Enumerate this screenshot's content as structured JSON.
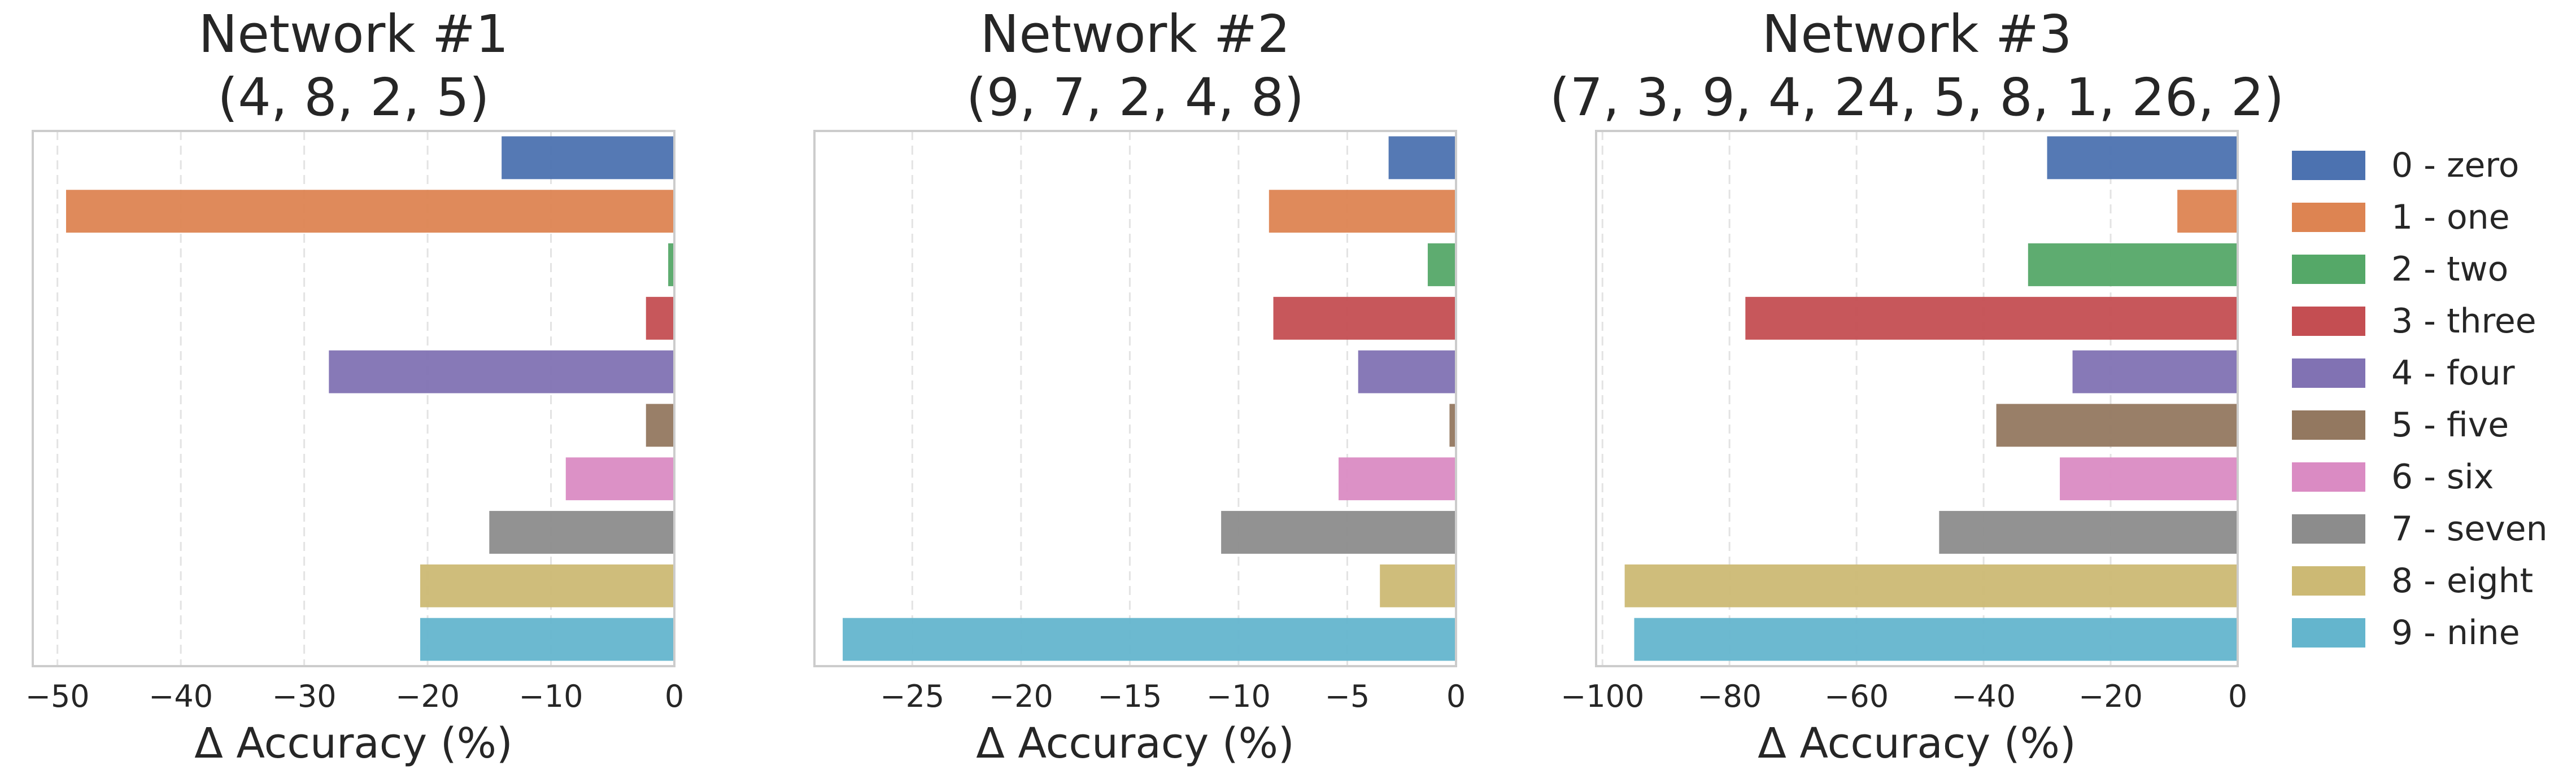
{
  "chart_data": [
    {
      "type": "bar",
      "orientation": "horizontal",
      "title": "Network #1",
      "subtitle": "(4, 8, 2, 5)",
      "xlabel": "Δ Accuracy (%)",
      "xlim": [
        -52,
        0
      ],
      "xticks": [
        -50,
        -40,
        -30,
        -20,
        -10,
        0
      ],
      "xtick_labels": [
        "−50",
        "−40",
        "−30",
        "−20",
        "−10",
        "0"
      ],
      "grid": true,
      "categories": [
        "0 - zero",
        "1 - one",
        "2 - two",
        "3 - three",
        "4 - four",
        "5 - five",
        "6 - six",
        "7 - seven",
        "8 - eight",
        "9 - nine"
      ],
      "values": [
        -14.0,
        -49.3,
        -0.5,
        -2.3,
        -28.0,
        -2.3,
        -8.8,
        -15.0,
        -20.6,
        -20.6
      ]
    },
    {
      "type": "bar",
      "orientation": "horizontal",
      "title": "Network #2",
      "subtitle": "(9, 7, 2, 4, 8)",
      "xlabel": "Δ Accuracy (%)",
      "xlim": [
        -29.5,
        0
      ],
      "xticks": [
        -25,
        -20,
        -15,
        -10,
        -5,
        0
      ],
      "xtick_labels": [
        "−25",
        "−20",
        "−15",
        "−10",
        "−5",
        "0"
      ],
      "grid": true,
      "categories": [
        "0 - zero",
        "1 - one",
        "2 - two",
        "3 - three",
        "4 - four",
        "5 - five",
        "6 - six",
        "7 - seven",
        "8 - eight",
        "9 - nine"
      ],
      "values": [
        -3.1,
        -8.6,
        -1.3,
        -8.4,
        -4.5,
        -0.3,
        -5.4,
        -10.8,
        -3.5,
        -28.2
      ]
    },
    {
      "type": "bar",
      "orientation": "horizontal",
      "title": "Network #3",
      "subtitle": "(7, 3, 9, 4, 24, 5, 8, 1, 26, 2)",
      "xlabel": "Δ Accuracy (%)",
      "xlim": [
        -101,
        0
      ],
      "xticks": [
        -100,
        -80,
        -60,
        -40,
        -20,
        0
      ],
      "xtick_labels": [
        "−100",
        "−80",
        "−60",
        "−40",
        "−20",
        "0"
      ],
      "grid": true,
      "categories": [
        "0 - zero",
        "1 - one",
        "2 - two",
        "3 - three",
        "4 - four",
        "5 - five",
        "6 - six",
        "7 - seven",
        "8 - eight",
        "9 - nine"
      ],
      "values": [
        -30.0,
        -9.5,
        -33.0,
        -77.5,
        -26.0,
        -38.0,
        -28.0,
        -47.0,
        -96.5,
        -95.0
      ]
    }
  ],
  "legend": {
    "placement": "right",
    "entries": [
      "0 - zero",
      "1 - one",
      "2 - two",
      "3 - three",
      "4 - four",
      "5 - five",
      "6 - six",
      "7 - seven",
      "8 - eight",
      "9 - nine"
    ]
  },
  "colors": [
    "#4c72b0",
    "#dd8452",
    "#55a868",
    "#c44e52",
    "#8172b3",
    "#937860",
    "#da8bc3",
    "#8c8c8c",
    "#ccb974",
    "#64b5cd"
  ],
  "style": {
    "axis_color": "#cccccc",
    "grid_color": "#e3e3e3",
    "bar_opacity": 0.95
  }
}
